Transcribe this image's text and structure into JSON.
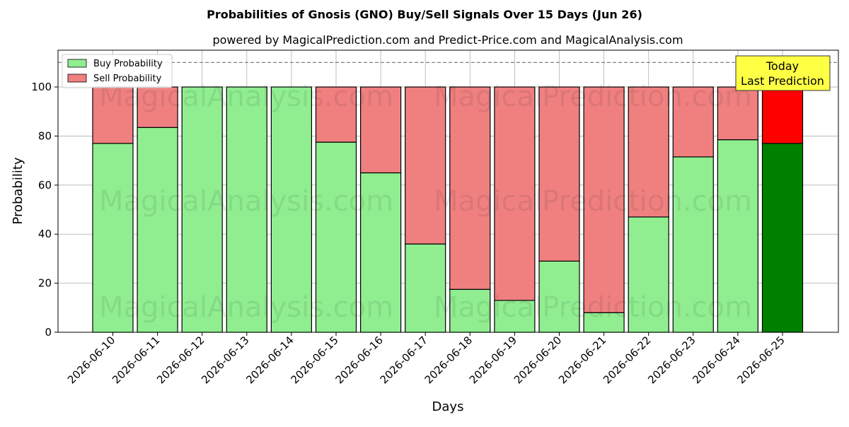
{
  "chart_data": {
    "type": "bar",
    "stacked": true,
    "title": "Probabilities of Gnosis (GNO) Buy/Sell Signals Over 15 Days (Jun 26)",
    "subtitle": "powered by MagicalPrediction.com and Predict-Price.com and MagicalAnalysis.com",
    "xlabel": "Days",
    "ylabel": "Probability",
    "ylim": [
      0,
      115
    ],
    "yticks": [
      0,
      20,
      40,
      60,
      80,
      100
    ],
    "reference_line": 110,
    "grid": true,
    "legend_position": "top-left",
    "categories": [
      "2026-06-10",
      "2026-06-11",
      "2026-06-12",
      "2026-06-13",
      "2026-06-14",
      "2026-06-15",
      "2026-06-16",
      "2026-06-17",
      "2026-06-18",
      "2026-06-19",
      "2026-06-20",
      "2026-06-21",
      "2026-06-22",
      "2026-06-23",
      "2026-06-24",
      "2026-06-25"
    ],
    "series": [
      {
        "name": "Buy Probability",
        "color": "#90ee90",
        "highlight_color": "#008000",
        "values": [
          77,
          83.5,
          100,
          100,
          100,
          77.5,
          65,
          36,
          17.5,
          13,
          29,
          8,
          47,
          71.5,
          78.5,
          77
        ]
      },
      {
        "name": "Sell Probability",
        "color": "#f08080",
        "highlight_color": "#ff0000",
        "values": [
          23,
          16.5,
          0,
          0,
          0,
          22.5,
          35,
          64,
          82.5,
          87,
          71,
          92,
          53,
          28.5,
          21.5,
          23
        ]
      }
    ],
    "annotation": {
      "lines": [
        "Today",
        "Last Prediction"
      ],
      "box_color": "#ffff44"
    },
    "watermarks": [
      "MagicalAnalysis.com",
      "MagicalPrediction.com"
    ]
  }
}
